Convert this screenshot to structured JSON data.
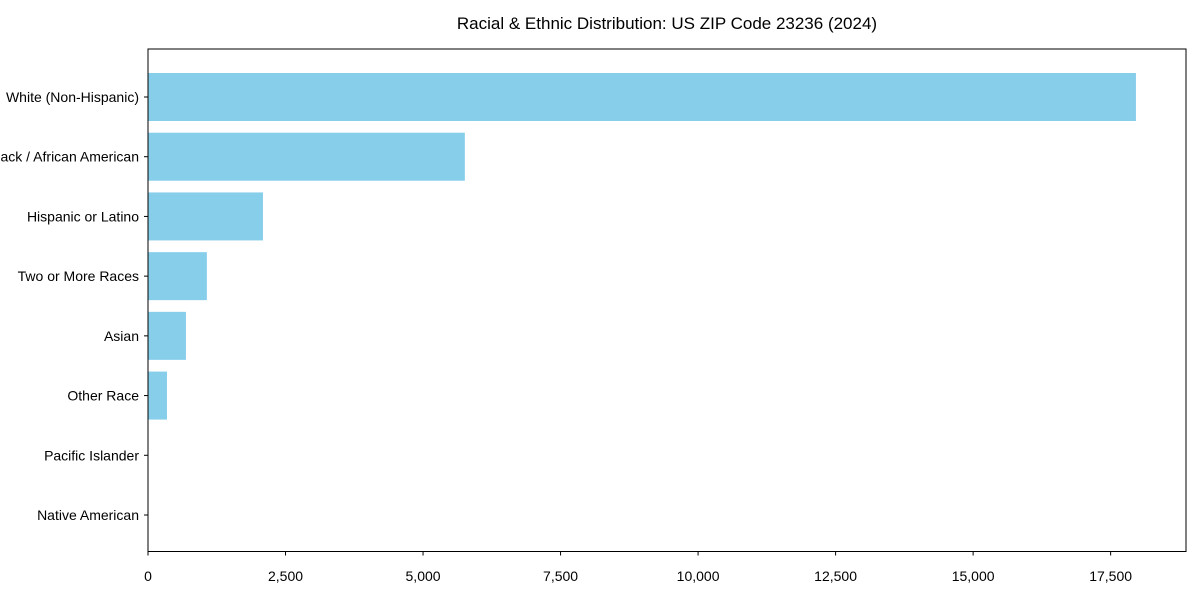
{
  "chart_data": {
    "type": "bar",
    "orientation": "horizontal",
    "title": "Racial & Ethnic Distribution: US ZIP Code 23236 (2024)",
    "categories": [
      "White (Non-Hispanic)",
      "Black / African American",
      "Hispanic or Latino",
      "Two or More Races",
      "Asian",
      "Other Race",
      "Pacific Islander",
      "Native American"
    ],
    "values": [
      17960,
      5760,
      2090,
      1070,
      690,
      345,
      0,
      0
    ],
    "xlabel": "",
    "ylabel": "",
    "xlim": [
      0,
      18870
    ],
    "xticks": [
      0,
      2500,
      5000,
      7500,
      10000,
      12500,
      15000,
      17500
    ],
    "xtick_labels": [
      "0",
      "2,500",
      "5,000",
      "7,500",
      "10,000",
      "12,500",
      "15,000",
      "17,500"
    ],
    "bar_color": "#87CEEB",
    "axis_color": "#000000",
    "text_color": "#000000",
    "grid": false,
    "legend": null
  }
}
